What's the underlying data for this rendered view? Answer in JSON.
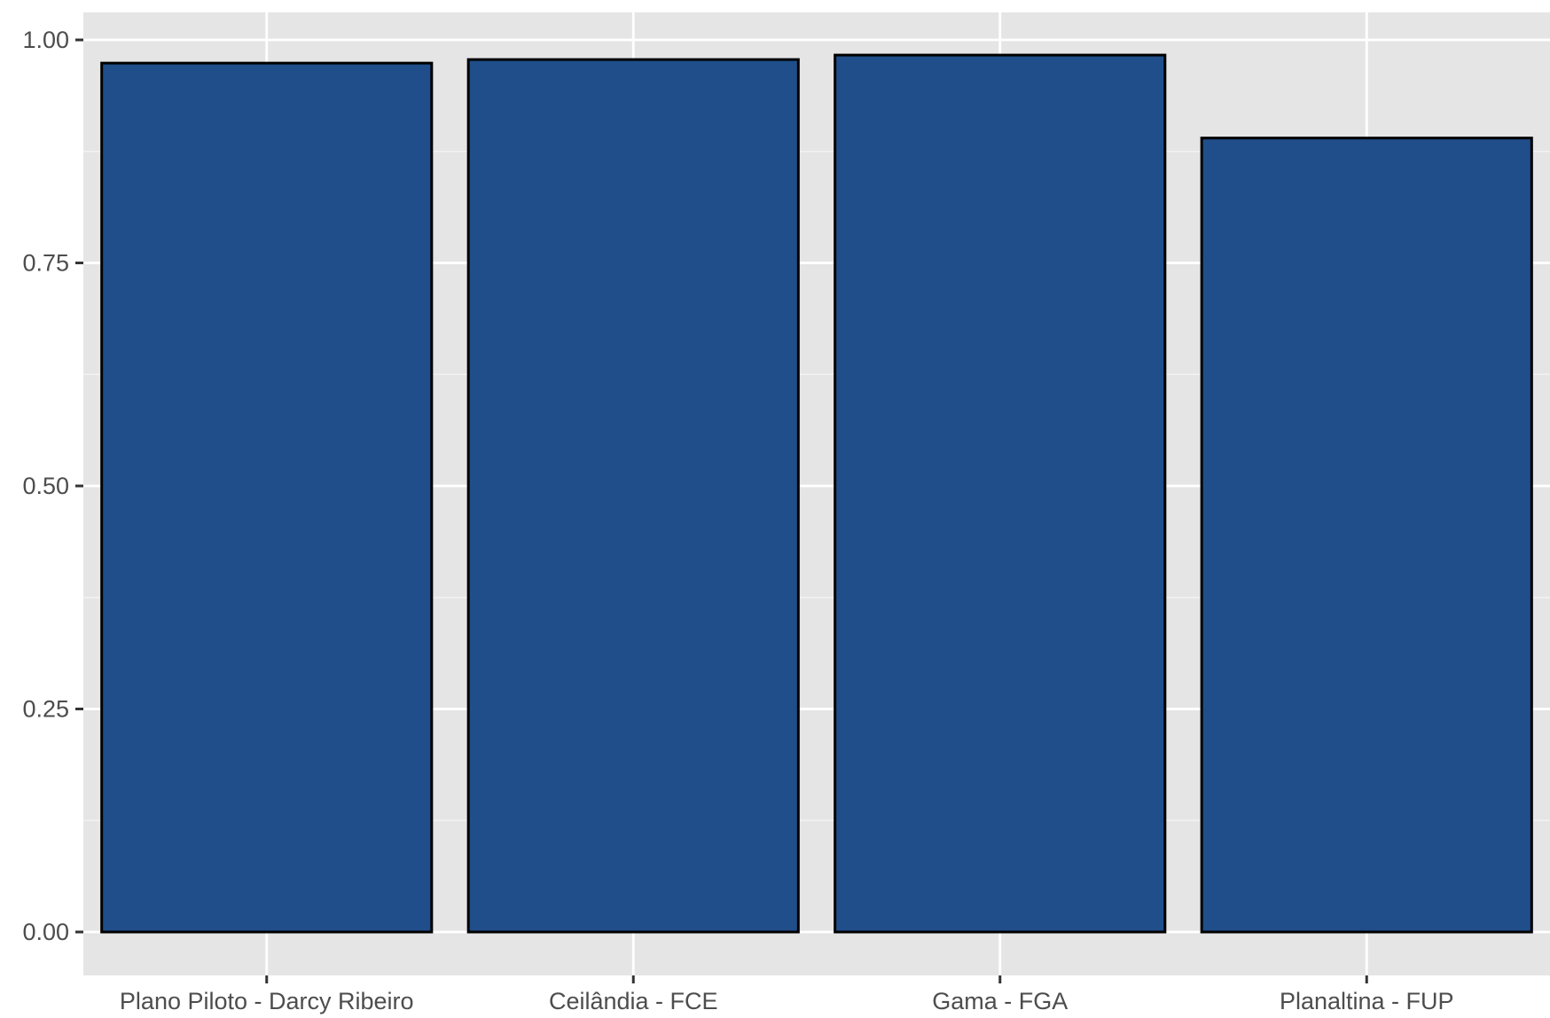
{
  "chart_data": {
    "type": "bar",
    "categories": [
      "Plano Piloto - Darcy Ribeiro",
      "Ceilândia - FCE",
      "Gama - FGA",
      "Planaltina - FUP"
    ],
    "values": [
      0.974,
      0.978,
      0.983,
      0.89
    ],
    "title": "",
    "xlabel": "",
    "ylabel": "",
    "ylim": [
      -0.05,
      1.03
    ],
    "yticks": [
      0.0,
      0.25,
      0.5,
      0.75,
      1.0
    ],
    "ytick_labels": [
      "0.00",
      "0.25",
      "0.50",
      "0.75",
      "1.00"
    ],
    "grid": true,
    "legend": "none",
    "colors": {
      "bar_fill": "#1F4E8A",
      "bar_stroke": "#000000",
      "panel_background": "#E5E5E5",
      "grid_major": "#FFFFFF",
      "grid_minor": "#F2F2F2",
      "tick_mark": "#333333",
      "tick_label": "#4D4D4D"
    }
  }
}
